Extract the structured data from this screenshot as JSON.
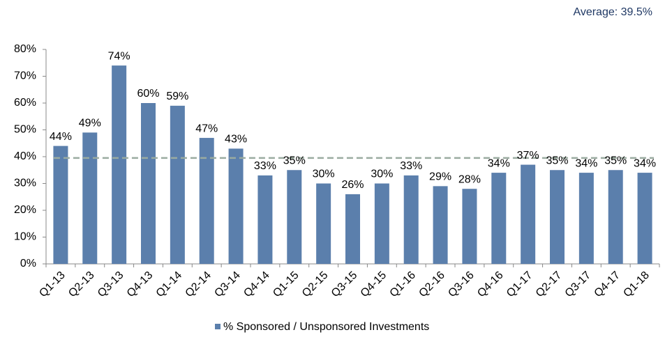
{
  "chart_data": {
    "type": "bar",
    "categories": [
      "Q1-13",
      "Q2-13",
      "Q3-13",
      "Q4-13",
      "Q1-14",
      "Q2-14",
      "Q3-14",
      "Q4-14",
      "Q1-15",
      "Q2-15",
      "Q3-15",
      "Q4-15",
      "Q1-16",
      "Q2-16",
      "Q3-16",
      "Q4-16",
      "Q1-17",
      "Q2-17",
      "Q3-17",
      "Q4-17",
      "Q1-18"
    ],
    "series": [
      {
        "name": "% Sponsored / Unsponsored Investments",
        "color": "#5b7fac",
        "values": [
          44,
          49,
          74,
          60,
          59,
          47,
          43,
          33,
          35,
          30,
          26,
          30,
          33,
          29,
          28,
          34,
          37,
          35,
          34,
          35,
          34
        ],
        "value_labels": [
          "44%",
          "49%",
          "74%",
          "60%",
          "59%",
          "47%",
          "43%",
          "33%",
          "35%",
          "30%",
          "26%",
          "30%",
          "33%",
          "29%",
          "28%",
          "34%",
          "37%",
          "35%",
          "34%",
          "35%",
          "34%"
        ]
      }
    ],
    "average": 39.5,
    "average_label": "Average: 39.5%",
    "average_color": "#9aaba0",
    "ylim": [
      0,
      80
    ],
    "yticks": [
      {
        "value": 0,
        "label": "0%"
      },
      {
        "value": 10,
        "label": "10%"
      },
      {
        "value": 20,
        "label": "20%"
      },
      {
        "value": 30,
        "label": "30%"
      },
      {
        "value": 40,
        "label": "40%"
      },
      {
        "value": 50,
        "label": "50%"
      },
      {
        "value": 60,
        "label": "60%"
      },
      {
        "value": 70,
        "label": "70%"
      },
      {
        "value": 80,
        "label": "80%"
      }
    ],
    "legend": "bottom"
  }
}
